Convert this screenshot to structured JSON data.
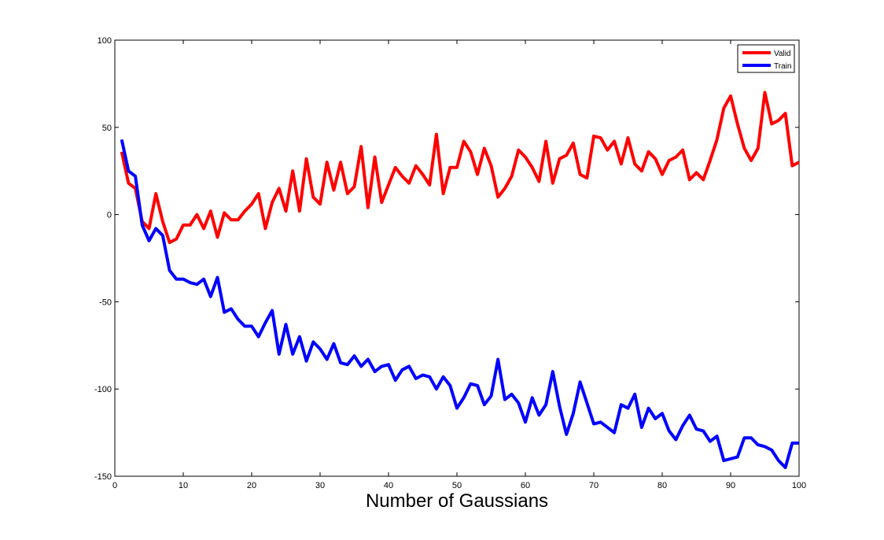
{
  "chart_data": {
    "type": "line",
    "title": "",
    "xlabel": "Number of Gaussians",
    "ylabel": "",
    "xlim": [
      0,
      100
    ],
    "ylim": [
      -150,
      100
    ],
    "xticks": [
      0,
      10,
      20,
      30,
      40,
      50,
      60,
      70,
      80,
      90,
      100
    ],
    "yticks": [
      -150,
      -100,
      -50,
      0,
      50,
      100
    ],
    "grid": false,
    "legend_position": "top-right",
    "x": [
      1,
      2,
      3,
      4,
      5,
      6,
      7,
      8,
      9,
      10,
      11,
      12,
      13,
      14,
      15,
      16,
      17,
      18,
      19,
      20,
      21,
      22,
      23,
      24,
      25,
      26,
      27,
      28,
      29,
      30,
      31,
      32,
      33,
      34,
      35,
      36,
      37,
      38,
      39,
      40,
      41,
      42,
      43,
      44,
      45,
      46,
      47,
      48,
      49,
      50,
      51,
      52,
      53,
      54,
      55,
      56,
      57,
      58,
      59,
      60,
      61,
      62,
      63,
      64,
      65,
      66,
      67,
      68,
      69,
      70,
      71,
      72,
      73,
      74,
      75,
      76,
      77,
      78,
      79,
      80,
      81,
      82,
      83,
      84,
      85,
      86,
      87,
      88,
      89,
      90,
      91,
      92,
      93,
      94,
      95,
      96,
      97,
      98,
      99,
      100
    ],
    "series": [
      {
        "name": "Valid",
        "color": "#ff0000",
        "values": [
          36,
          18,
          15,
          -4,
          -8,
          12,
          -4,
          -16,
          -14,
          -6,
          -6,
          0,
          -8,
          2,
          -13,
          1,
          -3,
          -3,
          2,
          6,
          12,
          -8,
          7,
          15,
          2,
          25,
          2,
          32,
          10,
          6,
          30,
          14,
          30,
          12,
          16,
          39,
          4,
          33,
          7,
          17,
          27,
          22,
          18,
          28,
          23,
          17,
          46,
          12,
          27,
          27,
          42,
          36,
          23,
          38,
          28,
          10,
          15,
          22,
          37,
          33,
          27,
          19,
          42,
          18,
          32,
          34,
          41,
          23,
          21,
          45,
          44,
          37,
          42,
          29,
          44,
          29,
          25,
          36,
          32,
          23,
          31,
          33,
          37,
          20,
          24,
          20,
          31,
          43,
          61,
          68,
          52,
          38,
          31,
          38,
          70,
          52,
          54,
          58,
          28,
          30
        ]
      },
      {
        "name": "Train",
        "color": "#0000ff",
        "values": [
          43,
          25,
          22,
          -6,
          -15,
          -8,
          -12,
          -32,
          -37,
          -37,
          -39,
          -40,
          -37,
          -47,
          -36,
          -56,
          -54,
          -60,
          -64,
          -64,
          -70,
          -62,
          -55,
          -80,
          -63,
          -80,
          -70,
          -84,
          -73,
          -77,
          -83,
          -74,
          -85,
          -86,
          -81,
          -87,
          -83,
          -90,
          -87,
          -86,
          -95,
          -89,
          -87,
          -94,
          -92,
          -93,
          -100,
          -93,
          -98,
          -111,
          -105,
          -97,
          -98,
          -109,
          -104,
          -83,
          -106,
          -103,
          -108,
          -119,
          -105,
          -115,
          -109,
          -90,
          -110,
          -126,
          -114,
          -96,
          -108,
          -120,
          -119,
          -122,
          -125,
          -109,
          -111,
          -103,
          -122,
          -111,
          -117,
          -114,
          -124,
          -129,
          -121,
          -115,
          -123,
          -124,
          -130,
          -127,
          -141,
          -140,
          -139,
          -128,
          -128,
          -132,
          -133,
          -135,
          -141,
          -145,
          -131,
          -131
        ]
      }
    ]
  }
}
